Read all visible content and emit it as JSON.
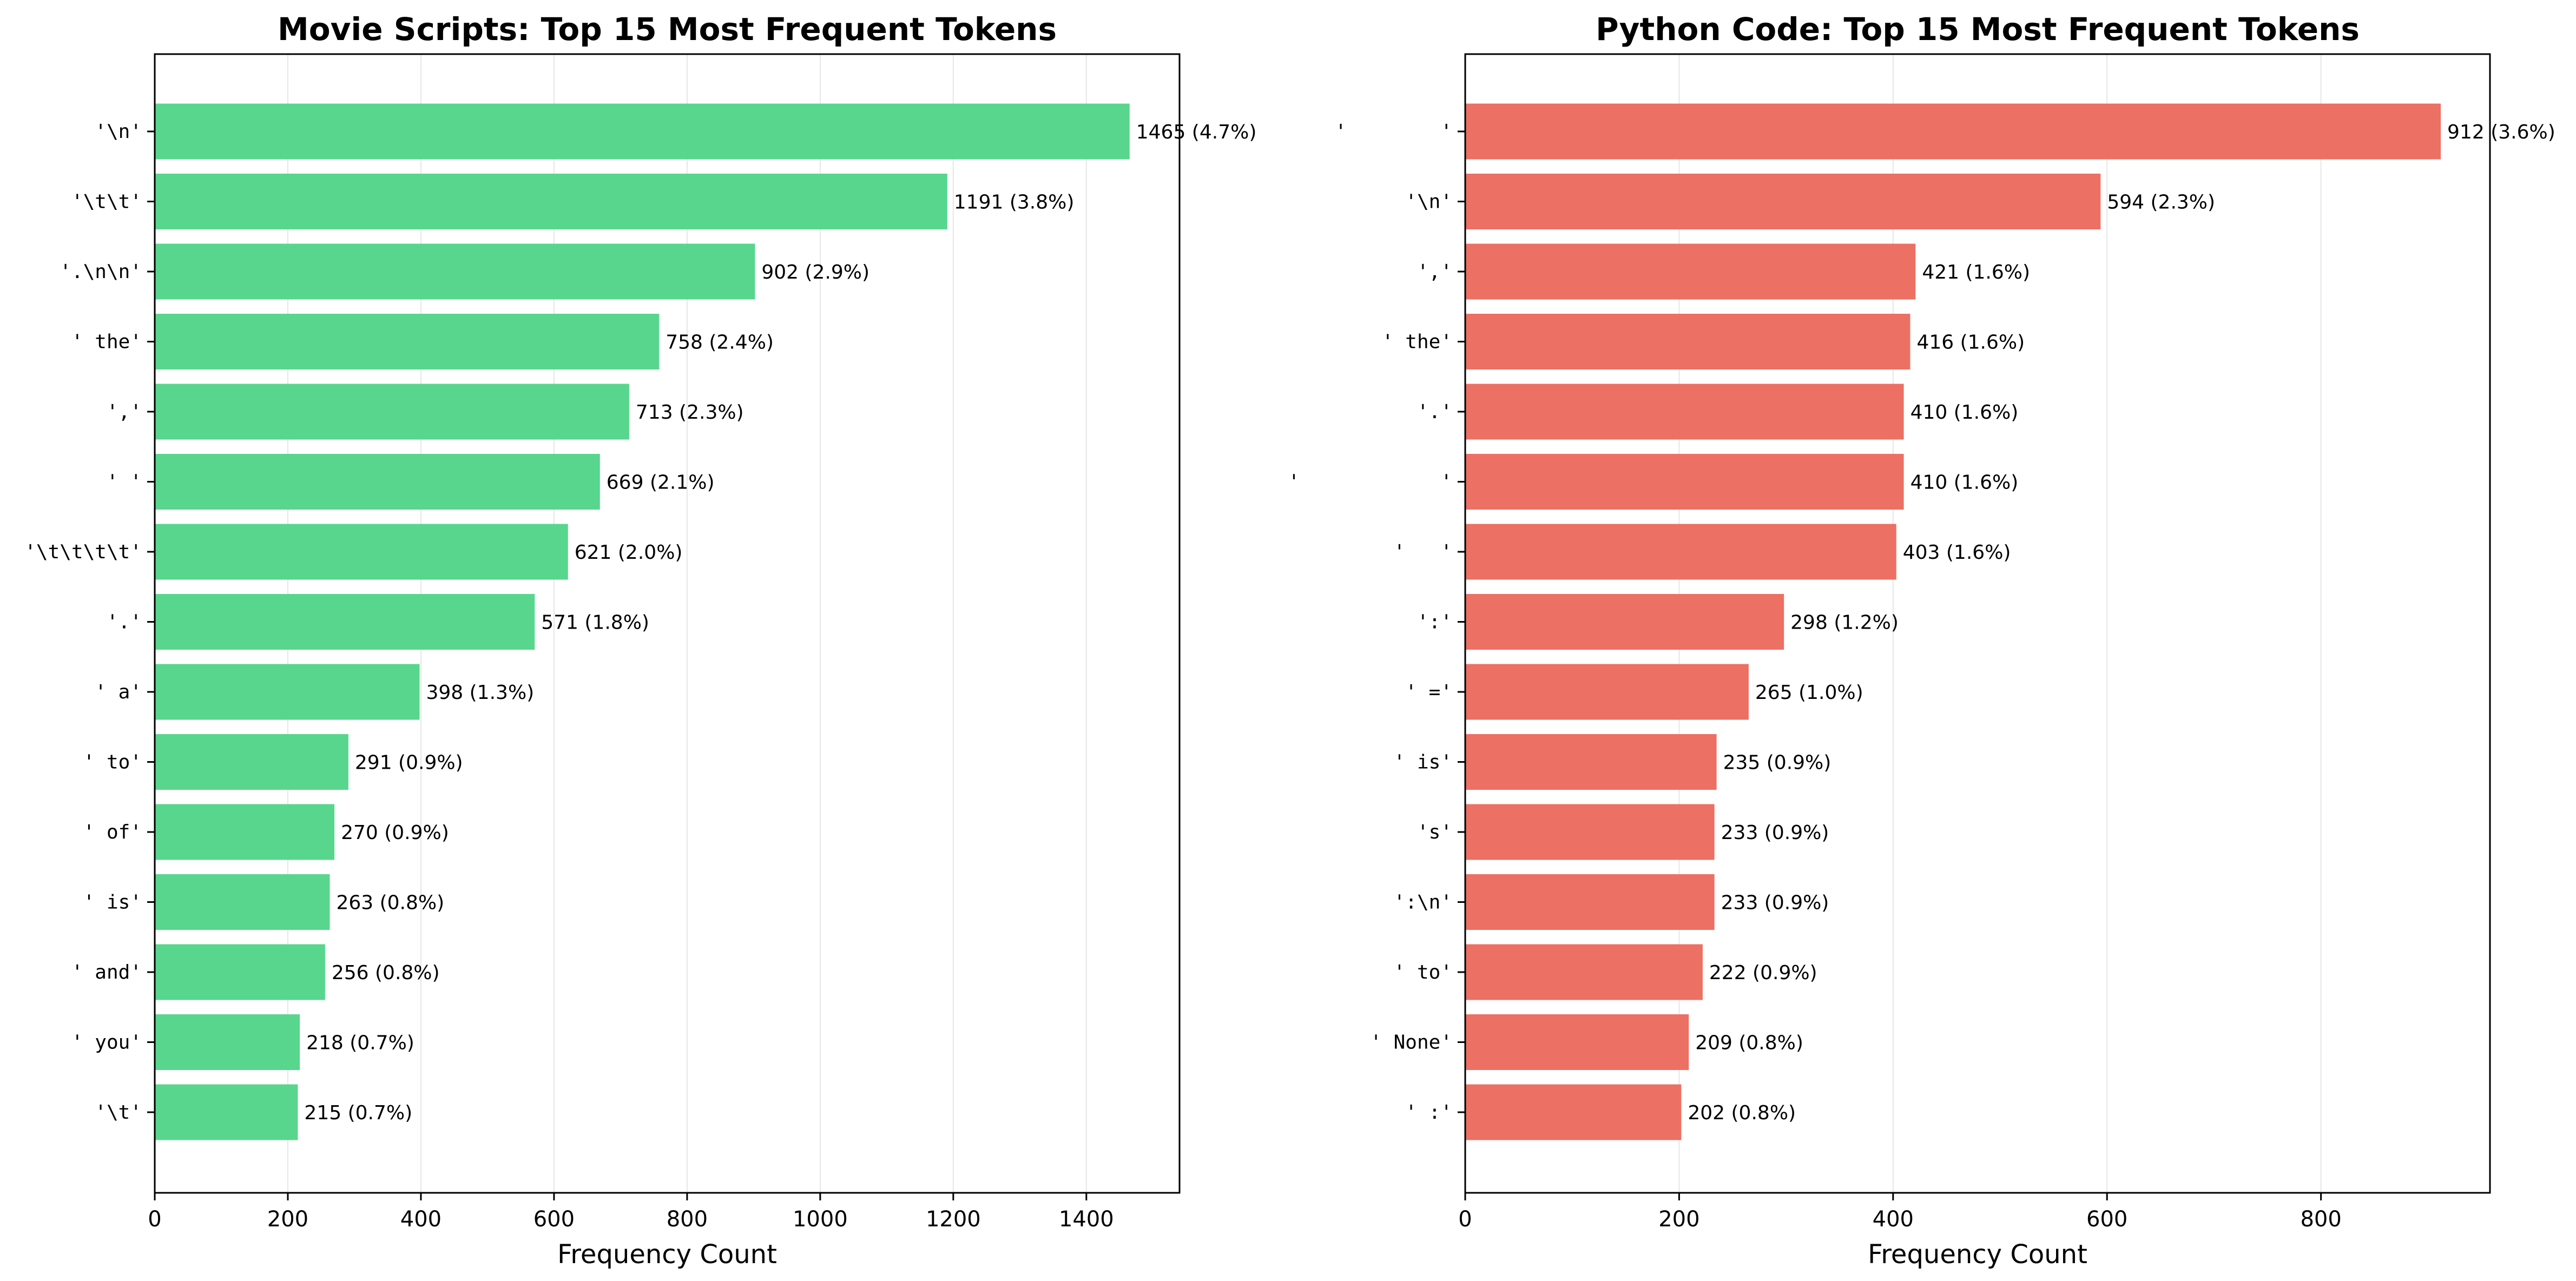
{
  "chart_data": [
    {
      "type": "bar",
      "orientation": "horizontal",
      "title": "Movie Scripts: Top 15 Most Frequent Tokens",
      "xlabel": "Frequency Count",
      "color": "#58d68d",
      "xlim": [
        0,
        1540
      ],
      "xticks": [
        0,
        200,
        400,
        600,
        800,
        1000,
        1200,
        1400
      ],
      "grid": true,
      "categories": [
        "'\\n'",
        "'\\t\\t'",
        "'.\\n\\n'",
        "' the'",
        "','",
        "' '",
        "'\\t\\t\\t\\t'",
        "'.'",
        "' a'",
        "' to'",
        "' of'",
        "' is'",
        "' and'",
        "' you'",
        "'\\t'"
      ],
      "values": [
        1465,
        1191,
        902,
        758,
        713,
        669,
        621,
        571,
        398,
        291,
        270,
        263,
        256,
        218,
        215
      ],
      "labels": [
        "1465 (4.7%)",
        "1191 (3.8%)",
        "902 (2.9%)",
        "758 (2.4%)",
        "713 (2.3%)",
        "669 (2.1%)",
        "621 (2.0%)",
        "571 (1.8%)",
        "398 (1.3%)",
        "291 (0.9%)",
        "270 (0.9%)",
        "263 (0.8%)",
        "256 (0.8%)",
        "218 (0.7%)",
        "215 (0.7%)"
      ]
    },
    {
      "type": "bar",
      "orientation": "horizontal",
      "title": "Python Code: Top 15 Most Frequent Tokens",
      "xlabel": "Frequency Count",
      "color": "#ec7063",
      "xlim": [
        0,
        958
      ],
      "xticks": [
        0,
        200,
        400,
        600,
        800
      ],
      "grid": true,
      "categories": [
        "'        '",
        "'\\n'",
        "','",
        "' the'",
        "'.'",
        "'            '",
        "'   '",
        "':'",
        "' ='",
        "' is'",
        "'s'",
        "':\\n'",
        "' to'",
        "' None'",
        "' :'"
      ],
      "values": [
        912,
        594,
        421,
        416,
        410,
        410,
        403,
        298,
        265,
        235,
        233,
        233,
        222,
        209,
        202
      ],
      "labels": [
        "912 (3.6%)",
        "594 (2.3%)",
        "421 (1.6%)",
        "416 (1.6%)",
        "410 (1.6%)",
        "410 (1.6%)",
        "403 (1.6%)",
        "298 (1.2%)",
        "265 (1.0%)",
        "235 (0.9%)",
        "233 (0.9%)",
        "233 (0.9%)",
        "222 (0.9%)",
        "209 (0.8%)",
        "202 (0.8%)"
      ]
    }
  ]
}
